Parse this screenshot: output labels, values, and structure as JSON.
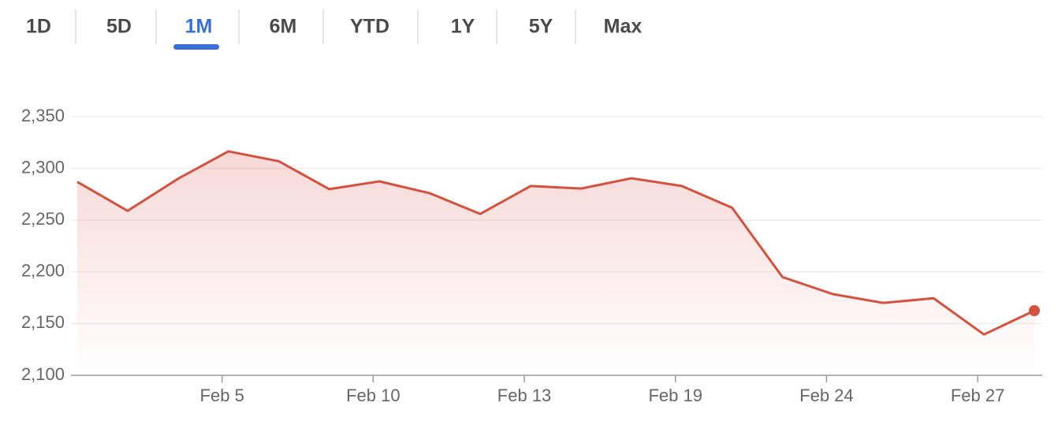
{
  "range_tabs": {
    "items": [
      "1D",
      "5D",
      "1M",
      "6M",
      "YTD",
      "1Y",
      "5Y",
      "Max"
    ],
    "active": 2
  },
  "chart_data": {
    "type": "line",
    "categories": [
      null,
      null,
      null,
      "Feb 5",
      null,
      null,
      "Feb 10",
      null,
      null,
      "Feb 13",
      null,
      null,
      "Feb 19",
      null,
      null,
      "Feb 24",
      null,
      null,
      "Feb 27",
      null
    ],
    "values": [
      2287,
      2259,
      2290,
      2316.5,
      2307,
      2280,
      2287.5,
      2276,
      2256,
      2283,
      2280.5,
      2290.5,
      2283,
      2262,
      2195,
      2178.5,
      2170,
      2174.5,
      2139.5,
      2162.5
    ],
    "color": "#d4503f",
    "ylim": [
      2100,
      2350
    ],
    "yticks": [
      {
        "value": 2100,
        "label": "2,100"
      },
      {
        "value": 2150,
        "label": "2,150"
      },
      {
        "value": 2200,
        "label": "2,200"
      },
      {
        "value": 2250,
        "label": "2,250"
      },
      {
        "value": 2300,
        "label": "2,300"
      },
      {
        "value": 2350,
        "label": "2,350"
      }
    ],
    "grid": true
  }
}
